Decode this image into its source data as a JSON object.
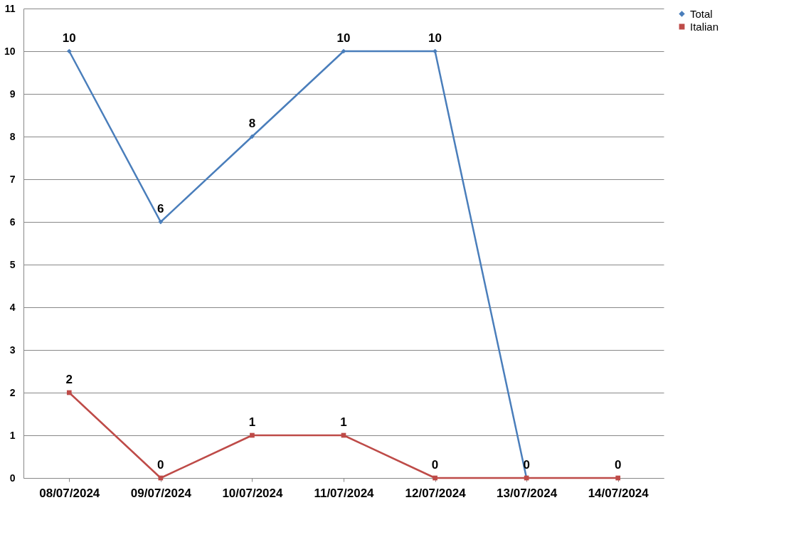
{
  "chart_data": {
    "type": "line",
    "categories": [
      "08/07/2024",
      "09/07/2024",
      "10/07/2024",
      "11/07/2024",
      "12/07/2024",
      "13/07/2024",
      "14/07/2024"
    ],
    "series": [
      {
        "name": "Total",
        "color": "#4a7ebb",
        "marker": "diamond",
        "values": [
          10,
          6,
          8,
          10,
          10,
          0,
          null
        ],
        "value_labels": [
          "10",
          "6",
          "8",
          "10",
          "10",
          "0",
          null
        ]
      },
      {
        "name": "Italian",
        "color": "#be4b48",
        "marker": "square",
        "values": [
          2,
          0,
          1,
          1,
          0,
          0,
          0
        ],
        "value_labels": [
          "2",
          "0",
          "1",
          "1",
          "0",
          null,
          "0"
        ]
      }
    ],
    "ylim": [
      0,
      11
    ],
    "yticks": [
      0,
      1,
      2,
      3,
      4,
      5,
      6,
      7,
      8,
      9,
      10,
      11
    ],
    "grid": "y",
    "legend": "right",
    "line_style": "solid"
  }
}
